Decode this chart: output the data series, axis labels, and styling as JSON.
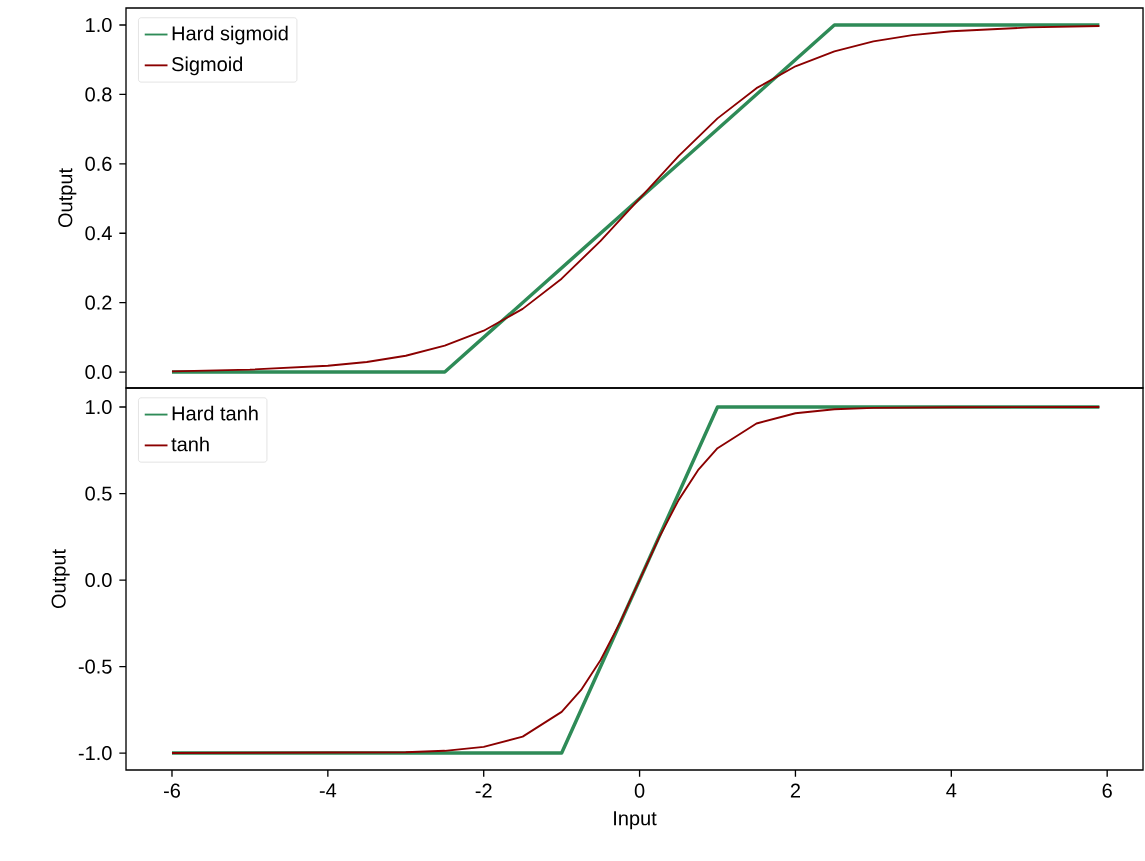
{
  "chart_data": [
    {
      "type": "line",
      "ylabel": "Output",
      "xlim": [
        -6.59,
        6.46
      ],
      "ylim": [
        -0.046,
        1.049
      ],
      "yticks": [
        {
          "value": 0,
          "label": "0.0"
        },
        {
          "value": 0.2,
          "label": "0.2"
        },
        {
          "value": 0.4,
          "label": "0.4"
        },
        {
          "value": 0.6,
          "label": "0.6"
        },
        {
          "value": 0.8,
          "label": "0.8"
        },
        {
          "value": 1,
          "label": "1.0"
        }
      ],
      "tick_labels": "y",
      "legend": "top left",
      "grid": false,
      "marker": "none",
      "line_style": "solid",
      "series": [
        {
          "name": "Hard sigmoid",
          "color": "#2e8b57",
          "x": [
            -6,
            -2.5,
            2.5,
            5.9
          ],
          "values": [
            0,
            0,
            1,
            1
          ]
        },
        {
          "name": "Sigmoid",
          "color": "#8b0000",
          "x": [
            -6,
            -5,
            -4,
            -3.5,
            -3,
            -2.5,
            -2,
            -1.5,
            -1,
            -0.5,
            0,
            0.5,
            1,
            1.5,
            2,
            2.5,
            3,
            3.5,
            4,
            5,
            5.9
          ],
          "values": [
            0.002,
            0.007,
            0.018,
            0.029,
            0.047,
            0.076,
            0.119,
            0.182,
            0.269,
            0.378,
            0.5,
            0.622,
            0.731,
            0.818,
            0.881,
            0.924,
            0.953,
            0.971,
            0.982,
            0.993,
            0.997
          ]
        }
      ]
    },
    {
      "type": "line",
      "xlabel": "Input",
      "ylabel": "Output",
      "xlim": [
        -6.59,
        6.46
      ],
      "ylim": [
        -1.098,
        1.11
      ],
      "xticks": [
        -6,
        -4,
        -2,
        0,
        2,
        4,
        6
      ],
      "yticks": [
        {
          "value": -1,
          "label": "-1.0"
        },
        {
          "value": -0.5,
          "label": "-0.5"
        },
        {
          "value": 0,
          "label": "0.0"
        },
        {
          "value": 0.5,
          "label": "0.5"
        },
        {
          "value": 1,
          "label": "1.0"
        }
      ],
      "legend": "top left",
      "grid": false,
      "marker": "none",
      "line_style": "solid",
      "series": [
        {
          "name": "Hard tanh",
          "color": "#2e8b57",
          "x": [
            -6,
            -1,
            1,
            5.9
          ],
          "values": [
            -1,
            -1,
            1,
            1
          ]
        },
        {
          "name": "tanh",
          "color": "#8b0000",
          "x": [
            -6,
            -3,
            -2.5,
            -2,
            -1.5,
            -1,
            -0.75,
            -0.5,
            -0.25,
            0,
            0.25,
            0.5,
            0.75,
            1,
            1.5,
            2,
            2.5,
            3,
            4,
            5.9
          ],
          "values": [
            -1,
            -0.995,
            -0.987,
            -0.964,
            -0.905,
            -0.762,
            -0.635,
            -0.462,
            -0.245,
            0,
            0.245,
            0.462,
            0.635,
            0.762,
            0.905,
            0.964,
            0.987,
            0.995,
            0.999,
            1
          ]
        }
      ]
    }
  ]
}
